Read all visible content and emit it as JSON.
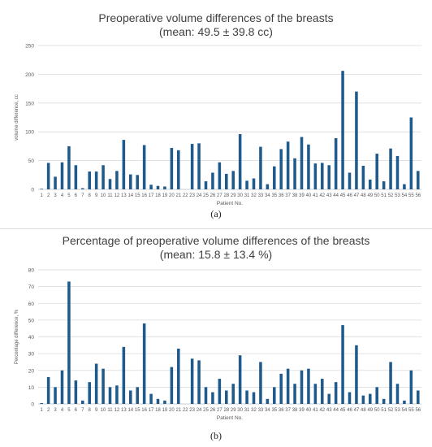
{
  "chart_data": [
    {
      "type": "bar",
      "title": "Preoperative volume differences of the breasts",
      "subtitle": "(mean: 49.5 ± 39.8 cc)",
      "xlabel": "Patient No.",
      "ylabel": "volume difference, cc",
      "ylim": [
        0,
        250
      ],
      "yticks": [
        0,
        50,
        100,
        150,
        200,
        250
      ],
      "grid": true,
      "caption": "(a)",
      "color": "#1F5A8C",
      "categories": [
        "1",
        "2",
        "3",
        "4",
        "5",
        "6",
        "7",
        "8",
        "9",
        "10",
        "11",
        "12",
        "13",
        "14",
        "15",
        "16",
        "17",
        "18",
        "19",
        "20",
        "21",
        "22",
        "23",
        "24",
        "25",
        "26",
        "27",
        "28",
        "29",
        "30",
        "31",
        "32",
        "33",
        "34",
        "35",
        "36",
        "37",
        "38",
        "39",
        "40",
        "41",
        "42",
        "43",
        "44",
        "45",
        "46",
        "47",
        "48",
        "49",
        "50",
        "51",
        "52",
        "53",
        "54",
        "55",
        "56"
      ],
      "values": [
        1,
        46,
        22,
        47,
        75,
        42,
        2,
        31,
        31,
        42,
        18,
        32,
        86,
        26,
        25,
        77,
        8,
        6,
        5,
        72,
        68,
        0,
        79,
        80,
        14,
        29,
        47,
        27,
        32,
        96,
        15,
        19,
        74,
        9,
        40,
        70,
        83,
        54,
        91,
        78,
        45,
        46,
        42,
        89,
        206,
        29,
        170,
        41,
        17,
        62,
        14,
        71,
        58,
        9,
        125,
        32
      ]
    },
    {
      "type": "bar",
      "title": "Percentage of preoperative volume differences of the breasts",
      "subtitle": "(mean: 15.8 ± 13.4 %)",
      "xlabel": "Patient No.",
      "ylabel": "Percentage difference, %",
      "ylim": [
        0,
        80
      ],
      "yticks": [
        0,
        10,
        20,
        30,
        40,
        50,
        60,
        70,
        80
      ],
      "grid": true,
      "caption": "(b)",
      "color": "#1F5A8C",
      "categories": [
        "1",
        "2",
        "3",
        "4",
        "5",
        "6",
        "7",
        "8",
        "9",
        "10",
        "11",
        "12",
        "13",
        "14",
        "15",
        "16",
        "17",
        "18",
        "19",
        "20",
        "21",
        "22",
        "23",
        "24",
        "25",
        "26",
        "27",
        "28",
        "29",
        "30",
        "31",
        "32",
        "33",
        "34",
        "35",
        "36",
        "37",
        "38",
        "39",
        "40",
        "41",
        "42",
        "43",
        "44",
        "45",
        "46",
        "47",
        "48",
        "49",
        "50",
        "51",
        "52",
        "53",
        "54",
        "55",
        "56"
      ],
      "values": [
        0.5,
        16,
        10,
        20,
        73,
        14,
        2,
        13,
        24,
        21,
        10,
        11,
        34,
        8,
        10,
        48,
        6,
        3,
        2,
        22,
        33,
        0,
        27,
        26,
        10,
        7,
        15,
        8,
        12,
        29,
        8,
        7,
        25,
        3,
        10,
        18,
        21,
        12,
        20,
        21,
        12,
        15,
        6,
        13,
        47,
        7,
        35,
        5,
        6,
        10,
        3,
        25,
        12,
        2,
        20,
        8
      ]
    }
  ]
}
